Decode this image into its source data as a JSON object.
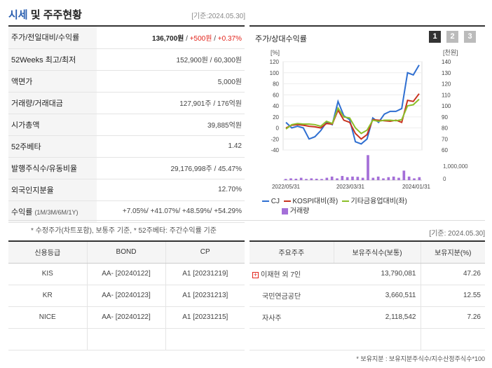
{
  "header": {
    "title_main": "시세",
    "title_rest": "및 주주현황",
    "base_date": "[기준:2024.05.30]"
  },
  "info": [
    {
      "key": "주가/전일대비/수익률",
      "price": "136,700원",
      "change": "+500원",
      "pct": "+0.37%"
    },
    {
      "key": "52Weeks 최고/최저",
      "value": "152,900원 / 60,300원"
    },
    {
      "key": "액면가",
      "value": "5,000원"
    },
    {
      "key": "거래량/거래대금",
      "value": "127,901주 / 176억원"
    },
    {
      "key": "시가총액",
      "value": "39,885억원"
    },
    {
      "key": "52주베타",
      "value": "1.42"
    },
    {
      "key": "발행주식수/유동비율",
      "value": "29,176,998주 / 45.47%"
    },
    {
      "key": "외국인지분율",
      "value": "12.70%"
    },
    {
      "key": "수익률",
      "key_sub": "(1M/3M/6M/1Y)",
      "value": "+7.05%/ +41.07%/ +48.59%/ +54.29%"
    }
  ],
  "note_left": "* 수정주가(차트포함), 보통주 기준, * 52주베타: 주간수익률 기준",
  "chart": {
    "title": "주가/상대수익률",
    "pages": [
      "1",
      "2",
      "3"
    ],
    "left_unit": "[%]",
    "right_unit": "[천원]",
    "vol_tick": "1,000,000",
    "vol_zero": "0",
    "legend": {
      "cj": "CJ",
      "kospi": "KOSPI대비(좌)",
      "sector": "기타금융업대비(좌)",
      "volume": "거래량"
    },
    "colors": {
      "cj": "#2f6fd1",
      "kospi": "#c8321e",
      "sector": "#8cbf2a",
      "volume": "#a46fd8"
    }
  },
  "chart_data": {
    "type": "line",
    "x_labels": [
      "2022/05/31",
      "2023/03/31",
      "2024/01/31"
    ],
    "left_axis": {
      "label": "[%]",
      "ticks": [
        -40,
        -20,
        0,
        20,
        40,
        60,
        80,
        100,
        120
      ],
      "range": [
        -40,
        120
      ]
    },
    "right_axis": {
      "label": "[천원]",
      "ticks": [
        60,
        70,
        80,
        90,
        100,
        110,
        120,
        130,
        140
      ],
      "range": [
        60,
        140
      ]
    },
    "series": [
      {
        "name": "CJ",
        "values": [
          10,
          0,
          3,
          0,
          -20,
          -16,
          -5,
          10,
          6,
          48,
          22,
          15,
          -25,
          -29,
          -20,
          18,
          10,
          25,
          30,
          30,
          35,
          100,
          96,
          114
        ]
      },
      {
        "name": "KOSPI대비(좌)",
        "values": [
          0,
          5,
          6,
          5,
          3,
          2,
          0,
          8,
          7,
          32,
          14,
          10,
          -10,
          -20,
          -12,
          15,
          14,
          13,
          12,
          14,
          10,
          50,
          48,
          62
        ]
      },
      {
        "name": "기타금융업대비(좌)",
        "values": [
          -2,
          6,
          8,
          7,
          7,
          6,
          3,
          12,
          8,
          36,
          20,
          18,
          0,
          -10,
          -4,
          14,
          12,
          14,
          14,
          13,
          15,
          40,
          42,
          52
        ]
      },
      {
        "name": "거래량",
        "values": [
          0.1,
          0.15,
          0.12,
          0.2,
          0.1,
          0.15,
          0.12,
          0.1,
          0.2,
          0.3,
          0.15,
          0.35,
          0.25,
          0.3,
          0.28,
          0.2,
          2.1,
          0.2,
          0.3,
          0.15,
          0.25,
          0.3,
          0.2,
          0.8,
          0.3,
          0.15,
          0.25
        ]
      }
    ]
  },
  "credit": {
    "headers": [
      "신용등급",
      "BOND",
      "CP"
    ],
    "rows": [
      [
        "KIS",
        "AA-  [20240122]",
        "A1  [20231219]"
      ],
      [
        "KR",
        "AA-  [20240123]",
        "A1  [20231213]"
      ],
      [
        "NICE",
        "AA-  [20240122]",
        "A1  [20231215]"
      ],
      [
        "",
        "",
        ""
      ]
    ]
  },
  "holders": {
    "base_date": "[기준: 2024.05.30]",
    "headers": [
      "주요주주",
      "보유주식수(보통)",
      "보유지분(%)"
    ],
    "rows": [
      [
        "이재현 외 7인",
        "13,790,081",
        "47.26"
      ],
      [
        "국민연금공단",
        "3,660,511",
        "12.55"
      ],
      [
        "자사주",
        "2,118,542",
        "7.26"
      ],
      [
        "",
        "",
        ""
      ]
    ],
    "note": "* 보유지분 : 보유지분주식수/지수산정주식수*100"
  }
}
